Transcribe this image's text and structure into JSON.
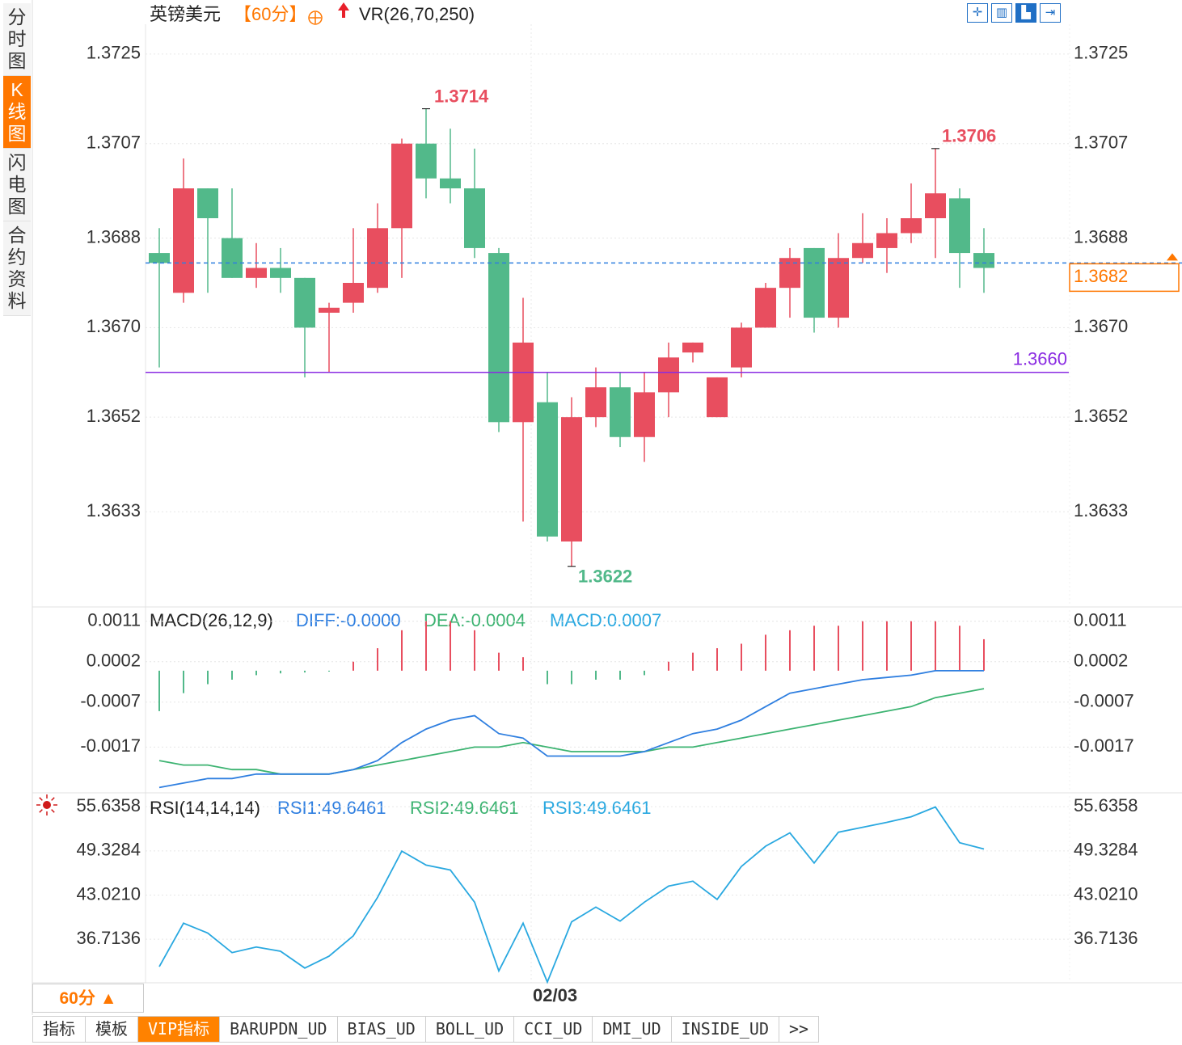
{
  "side_tabs": [
    {
      "label": "分时图",
      "active": false
    },
    {
      "label": "K线图",
      "active": true
    },
    {
      "label": "闪电图",
      "active": false
    },
    {
      "label": "合约资料",
      "active": false
    }
  ],
  "header": {
    "symbol": "英镑美元",
    "period": "【60分】",
    "indicator": "VR(26,70,250)"
  },
  "tool_icons": [
    "crosshair-icon",
    "bar-chart-icon",
    "bar-chart-filled-icon",
    "arrow-right-icon"
  ],
  "colors": {
    "up": "#e84e5f",
    "down": "#52b98a",
    "dashed_line": "#2f7fe0",
    "support_line": "#8a2be2",
    "orange": "#ff7700",
    "diff": "#2f7fe0",
    "dea": "#3cb371",
    "rsi": "#29a8e0"
  },
  "main": {
    "y_ticks": [
      "1.3725",
      "1.3707",
      "1.3688",
      "1.3670",
      "1.3652",
      "1.3633"
    ],
    "y_tick_values": [
      1.3725,
      1.3707,
      1.3688,
      1.367,
      1.3652,
      1.3633
    ],
    "ylim": [
      1.3614,
      1.3731
    ],
    "current_price": "1.3682",
    "current_value": 1.3683,
    "support_label": "1.3660",
    "support_value": 1.3661,
    "high_label": "1.3714",
    "high2_label": "1.3706",
    "low_label": "1.3622"
  },
  "chart_data": {
    "type": "candlestick",
    "date_label": "02/03",
    "date_index": 16,
    "candles": [
      {
        "o": 1.3685,
        "h": 1.369,
        "l": 1.3662,
        "c": 1.3683
      },
      {
        "o": 1.3677,
        "h": 1.3704,
        "l": 1.3675,
        "c": 1.3698
      },
      {
        "o": 1.3698,
        "h": 1.3698,
        "l": 1.3677,
        "c": 1.3692
      },
      {
        "o": 1.3688,
        "h": 1.3698,
        "l": 1.368,
        "c": 1.368
      },
      {
        "o": 1.368,
        "h": 1.3687,
        "l": 1.3678,
        "c": 1.3682
      },
      {
        "o": 1.3682,
        "h": 1.3686,
        "l": 1.3677,
        "c": 1.368
      },
      {
        "o": 1.368,
        "h": 1.368,
        "l": 1.366,
        "c": 1.367
      },
      {
        "o": 1.3673,
        "h": 1.3675,
        "l": 1.3661,
        "c": 1.3674
      },
      {
        "o": 1.3675,
        "h": 1.369,
        "l": 1.3673,
        "c": 1.3679
      },
      {
        "o": 1.3678,
        "h": 1.3695,
        "l": 1.3677,
        "c": 1.369
      },
      {
        "o": 1.369,
        "h": 1.3708,
        "l": 1.368,
        "c": 1.3707
      },
      {
        "o": 1.3707,
        "h": 1.3714,
        "l": 1.3696,
        "c": 1.37
      },
      {
        "o": 1.37,
        "h": 1.371,
        "l": 1.3695,
        "c": 1.3698
      },
      {
        "o": 1.3698,
        "h": 1.3706,
        "l": 1.3684,
        "c": 1.3686
      },
      {
        "o": 1.3685,
        "h": 1.3686,
        "l": 1.3649,
        "c": 1.3651
      },
      {
        "o": 1.3651,
        "h": 1.3676,
        "l": 1.3631,
        "c": 1.3667
      },
      {
        "o": 1.3655,
        "h": 1.3661,
        "l": 1.3627,
        "c": 1.3628
      },
      {
        "o": 1.3627,
        "h": 1.3656,
        "l": 1.3622,
        "c": 1.3652
      },
      {
        "o": 1.3652,
        "h": 1.3662,
        "l": 1.365,
        "c": 1.3658
      },
      {
        "o": 1.3658,
        "h": 1.3661,
        "l": 1.3646,
        "c": 1.3648
      },
      {
        "o": 1.3648,
        "h": 1.3661,
        "l": 1.3643,
        "c": 1.3657
      },
      {
        "o": 1.3657,
        "h": 1.3667,
        "l": 1.3652,
        "c": 1.3664
      },
      {
        "o": 1.3665,
        "h": 1.3667,
        "l": 1.3663,
        "c": 1.3667
      },
      {
        "o": 1.3652,
        "h": 1.366,
        "l": 1.3652,
        "c": 1.366
      },
      {
        "o": 1.3662,
        "h": 1.3671,
        "l": 1.366,
        "c": 1.367
      },
      {
        "o": 1.367,
        "h": 1.3679,
        "l": 1.367,
        "c": 1.3678
      },
      {
        "o": 1.3678,
        "h": 1.3686,
        "l": 1.3672,
        "c": 1.3684
      },
      {
        "o": 1.3686,
        "h": 1.3686,
        "l": 1.3669,
        "c": 1.3672
      },
      {
        "o": 1.3672,
        "h": 1.3689,
        "l": 1.367,
        "c": 1.3684
      },
      {
        "o": 1.3684,
        "h": 1.3693,
        "l": 1.3683,
        "c": 1.3687
      },
      {
        "o": 1.3686,
        "h": 1.3692,
        "l": 1.3681,
        "c": 1.3689
      },
      {
        "o": 1.3689,
        "h": 1.3699,
        "l": 1.3687,
        "c": 1.3692
      },
      {
        "o": 1.3692,
        "h": 1.3706,
        "l": 1.3684,
        "c": 1.3697
      },
      {
        "o": 1.3696,
        "h": 1.3698,
        "l": 1.3678,
        "c": 1.3685
      },
      {
        "o": 1.3685,
        "h": 1.369,
        "l": 1.3677,
        "c": 1.3682
      }
    ],
    "macd": {
      "label": "MACD(26,12,9)",
      "diff_label": "DIFF:-0.0000",
      "dea_label": "DEA:-0.0004",
      "macd_label": "MACD:0.0007",
      "y_ticks": [
        "0.0011",
        "0.0002",
        "-0.0007",
        "-0.0017"
      ],
      "y_tick_values": [
        0.0011,
        0.0002,
        -0.0007,
        -0.0017
      ],
      "ylim": [
        -0.0027,
        0.0014
      ],
      "hist": [
        -0.0009,
        -0.0005,
        -0.0003,
        -0.0002,
        -0.0001,
        -6e-05,
        -4e-05,
        -2e-05,
        0.0002,
        0.0005,
        0.0009,
        0.0011,
        0.0011,
        0.0009,
        0.0004,
        0.0003,
        -0.0003,
        -0.0003,
        -0.0002,
        -0.0002,
        -0.0001,
        0.0002,
        0.0004,
        0.0005,
        0.0006,
        0.0008,
        0.0009,
        0.001,
        0.001,
        0.0011,
        0.0011,
        0.0011,
        0.0011,
        0.001,
        0.0007
      ],
      "diff": [
        -0.0026,
        -0.0025,
        -0.0024,
        -0.0024,
        -0.0023,
        -0.0023,
        -0.0023,
        -0.0023,
        -0.0022,
        -0.002,
        -0.0016,
        -0.0013,
        -0.0011,
        -0.001,
        -0.0014,
        -0.0015,
        -0.0019,
        -0.0019,
        -0.0019,
        -0.0019,
        -0.0018,
        -0.0016,
        -0.0014,
        -0.0013,
        -0.0011,
        -0.0008,
        -0.0005,
        -0.0004,
        -0.0003,
        -0.0002,
        -0.00015,
        -0.0001,
        0.0,
        0.0,
        0.0
      ],
      "dea": [
        -0.002,
        -0.0021,
        -0.0021,
        -0.0022,
        -0.0022,
        -0.0023,
        -0.0023,
        -0.0023,
        -0.0022,
        -0.0021,
        -0.002,
        -0.0019,
        -0.0018,
        -0.0017,
        -0.0017,
        -0.0016,
        -0.0017,
        -0.0018,
        -0.0018,
        -0.0018,
        -0.0018,
        -0.0017,
        -0.0017,
        -0.0016,
        -0.0015,
        -0.0014,
        -0.0013,
        -0.0012,
        -0.0011,
        -0.001,
        -0.0009,
        -0.0008,
        -0.0006,
        -0.0005,
        -0.0004
      ]
    },
    "rsi": {
      "label": "RSI(14,14,14)",
      "rsi1_label": "RSI1:49.6461",
      "rsi2_label": "RSI2:49.6461",
      "rsi3_label": "RSI3:49.6461",
      "y_ticks": [
        "55.6358",
        "49.3284",
        "43.0210",
        "36.7136"
      ],
      "y_tick_values": [
        55.6358,
        49.3284,
        43.021,
        36.7136
      ],
      "ylim": [
        30.5,
        57.5
      ],
      "values": [
        32.8,
        39.0,
        37.6,
        34.8,
        35.6,
        35.0,
        32.6,
        34.3,
        37.2,
        42.7,
        49.3,
        47.3,
        46.6,
        42.0,
        32.2,
        39.0,
        30.6,
        39.2,
        41.3,
        39.3,
        42.0,
        44.3,
        45.0,
        42.4,
        47.1,
        50.0,
        51.9,
        47.6,
        52.0,
        52.7,
        53.4,
        54.2,
        55.6,
        50.5,
        49.6
      ]
    }
  },
  "footer": {
    "period_label": "60分 ▲",
    "tabs": [
      "指标",
      "模板",
      "VIP指标",
      "BARUPDN_UD",
      "BIAS_UD",
      "BOLL_UD",
      "CCI_UD",
      "DMI_UD",
      "INSIDE_UD",
      ">>"
    ]
  }
}
